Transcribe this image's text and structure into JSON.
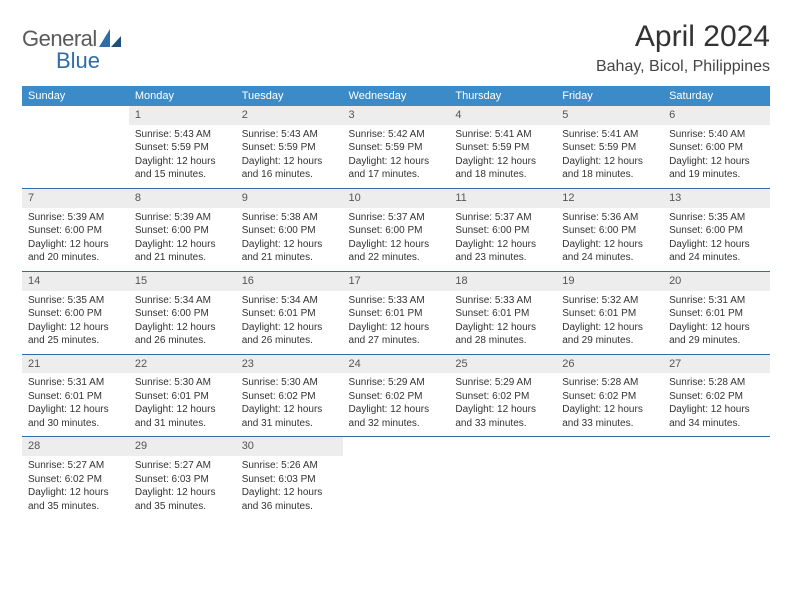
{
  "brand": {
    "part1": "General",
    "part2": "Blue"
  },
  "title": "April 2024",
  "location": "Bahay, Bicol, Philippines",
  "colors": {
    "header_bg": "#3b8bc9",
    "header_text": "#ffffff",
    "daynum_bg": "#ededed",
    "week_separator": "#2f6da8",
    "brand_gray": "#5a5a5a",
    "brand_blue": "#2f6da8"
  },
  "day_headers": [
    "Sunday",
    "Monday",
    "Tuesday",
    "Wednesday",
    "Thursday",
    "Friday",
    "Saturday"
  ],
  "weeks": [
    [
      {
        "blank": true
      },
      {
        "n": "1",
        "sunrise": "Sunrise: 5:43 AM",
        "sunset": "Sunset: 5:59 PM",
        "day1": "Daylight: 12 hours",
        "day2": "and 15 minutes."
      },
      {
        "n": "2",
        "sunrise": "Sunrise: 5:43 AM",
        "sunset": "Sunset: 5:59 PM",
        "day1": "Daylight: 12 hours",
        "day2": "and 16 minutes."
      },
      {
        "n": "3",
        "sunrise": "Sunrise: 5:42 AM",
        "sunset": "Sunset: 5:59 PM",
        "day1": "Daylight: 12 hours",
        "day2": "and 17 minutes."
      },
      {
        "n": "4",
        "sunrise": "Sunrise: 5:41 AM",
        "sunset": "Sunset: 5:59 PM",
        "day1": "Daylight: 12 hours",
        "day2": "and 18 minutes."
      },
      {
        "n": "5",
        "sunrise": "Sunrise: 5:41 AM",
        "sunset": "Sunset: 5:59 PM",
        "day1": "Daylight: 12 hours",
        "day2": "and 18 minutes."
      },
      {
        "n": "6",
        "sunrise": "Sunrise: 5:40 AM",
        "sunset": "Sunset: 6:00 PM",
        "day1": "Daylight: 12 hours",
        "day2": "and 19 minutes."
      }
    ],
    [
      {
        "n": "7",
        "sunrise": "Sunrise: 5:39 AM",
        "sunset": "Sunset: 6:00 PM",
        "day1": "Daylight: 12 hours",
        "day2": "and 20 minutes."
      },
      {
        "n": "8",
        "sunrise": "Sunrise: 5:39 AM",
        "sunset": "Sunset: 6:00 PM",
        "day1": "Daylight: 12 hours",
        "day2": "and 21 minutes."
      },
      {
        "n": "9",
        "sunrise": "Sunrise: 5:38 AM",
        "sunset": "Sunset: 6:00 PM",
        "day1": "Daylight: 12 hours",
        "day2": "and 21 minutes."
      },
      {
        "n": "10",
        "sunrise": "Sunrise: 5:37 AM",
        "sunset": "Sunset: 6:00 PM",
        "day1": "Daylight: 12 hours",
        "day2": "and 22 minutes."
      },
      {
        "n": "11",
        "sunrise": "Sunrise: 5:37 AM",
        "sunset": "Sunset: 6:00 PM",
        "day1": "Daylight: 12 hours",
        "day2": "and 23 minutes."
      },
      {
        "n": "12",
        "sunrise": "Sunrise: 5:36 AM",
        "sunset": "Sunset: 6:00 PM",
        "day1": "Daylight: 12 hours",
        "day2": "and 24 minutes."
      },
      {
        "n": "13",
        "sunrise": "Sunrise: 5:35 AM",
        "sunset": "Sunset: 6:00 PM",
        "day1": "Daylight: 12 hours",
        "day2": "and 24 minutes."
      }
    ],
    [
      {
        "n": "14",
        "sunrise": "Sunrise: 5:35 AM",
        "sunset": "Sunset: 6:00 PM",
        "day1": "Daylight: 12 hours",
        "day2": "and 25 minutes."
      },
      {
        "n": "15",
        "sunrise": "Sunrise: 5:34 AM",
        "sunset": "Sunset: 6:00 PM",
        "day1": "Daylight: 12 hours",
        "day2": "and 26 minutes."
      },
      {
        "n": "16",
        "sunrise": "Sunrise: 5:34 AM",
        "sunset": "Sunset: 6:01 PM",
        "day1": "Daylight: 12 hours",
        "day2": "and 26 minutes."
      },
      {
        "n": "17",
        "sunrise": "Sunrise: 5:33 AM",
        "sunset": "Sunset: 6:01 PM",
        "day1": "Daylight: 12 hours",
        "day2": "and 27 minutes."
      },
      {
        "n": "18",
        "sunrise": "Sunrise: 5:33 AM",
        "sunset": "Sunset: 6:01 PM",
        "day1": "Daylight: 12 hours",
        "day2": "and 28 minutes."
      },
      {
        "n": "19",
        "sunrise": "Sunrise: 5:32 AM",
        "sunset": "Sunset: 6:01 PM",
        "day1": "Daylight: 12 hours",
        "day2": "and 29 minutes."
      },
      {
        "n": "20",
        "sunrise": "Sunrise: 5:31 AM",
        "sunset": "Sunset: 6:01 PM",
        "day1": "Daylight: 12 hours",
        "day2": "and 29 minutes."
      }
    ],
    [
      {
        "n": "21",
        "sunrise": "Sunrise: 5:31 AM",
        "sunset": "Sunset: 6:01 PM",
        "day1": "Daylight: 12 hours",
        "day2": "and 30 minutes."
      },
      {
        "n": "22",
        "sunrise": "Sunrise: 5:30 AM",
        "sunset": "Sunset: 6:01 PM",
        "day1": "Daylight: 12 hours",
        "day2": "and 31 minutes."
      },
      {
        "n": "23",
        "sunrise": "Sunrise: 5:30 AM",
        "sunset": "Sunset: 6:02 PM",
        "day1": "Daylight: 12 hours",
        "day2": "and 31 minutes."
      },
      {
        "n": "24",
        "sunrise": "Sunrise: 5:29 AM",
        "sunset": "Sunset: 6:02 PM",
        "day1": "Daylight: 12 hours",
        "day2": "and 32 minutes."
      },
      {
        "n": "25",
        "sunrise": "Sunrise: 5:29 AM",
        "sunset": "Sunset: 6:02 PM",
        "day1": "Daylight: 12 hours",
        "day2": "and 33 minutes."
      },
      {
        "n": "26",
        "sunrise": "Sunrise: 5:28 AM",
        "sunset": "Sunset: 6:02 PM",
        "day1": "Daylight: 12 hours",
        "day2": "and 33 minutes."
      },
      {
        "n": "27",
        "sunrise": "Sunrise: 5:28 AM",
        "sunset": "Sunset: 6:02 PM",
        "day1": "Daylight: 12 hours",
        "day2": "and 34 minutes."
      }
    ],
    [
      {
        "n": "28",
        "sunrise": "Sunrise: 5:27 AM",
        "sunset": "Sunset: 6:02 PM",
        "day1": "Daylight: 12 hours",
        "day2": "and 35 minutes."
      },
      {
        "n": "29",
        "sunrise": "Sunrise: 5:27 AM",
        "sunset": "Sunset: 6:03 PM",
        "day1": "Daylight: 12 hours",
        "day2": "and 35 minutes."
      },
      {
        "n": "30",
        "sunrise": "Sunrise: 5:26 AM",
        "sunset": "Sunset: 6:03 PM",
        "day1": "Daylight: 12 hours",
        "day2": "and 36 minutes."
      },
      {
        "blank": true
      },
      {
        "blank": true
      },
      {
        "blank": true
      },
      {
        "blank": true
      }
    ]
  ]
}
